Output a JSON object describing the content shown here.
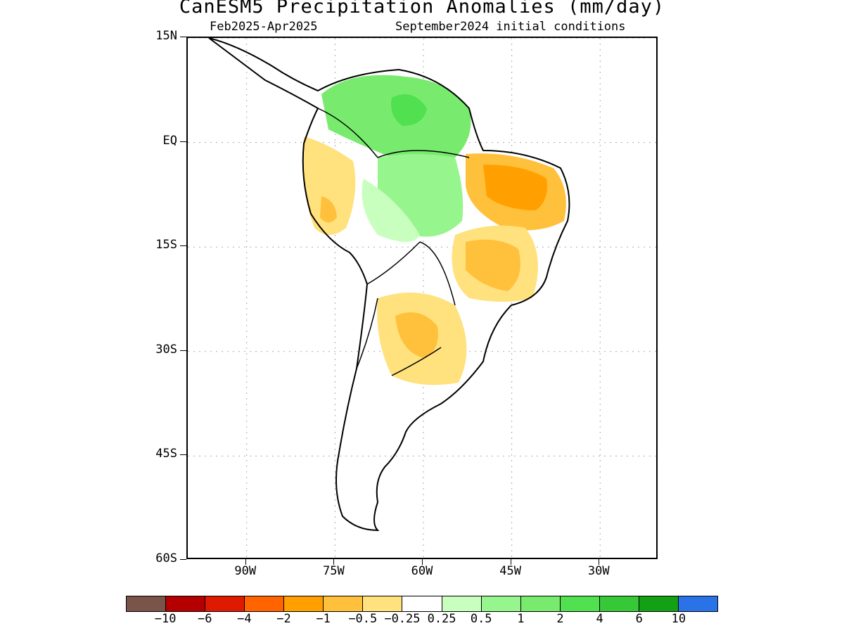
{
  "title": "CanESM5 Precipitation Anomalies (mm/day)",
  "period": "Feb2025-Apr2025",
  "initial_conditions": "September2024 initial conditions",
  "map": {
    "region": "South America",
    "lon_range": [
      -100,
      -20
    ],
    "lat_range": [
      -60,
      15
    ],
    "y_ticks": [
      {
        "label": "15N",
        "lat": 15
      },
      {
        "label": "EQ",
        "lat": 0
      },
      {
        "label": "15S",
        "lat": -15
      },
      {
        "label": "30S",
        "lat": -30
      },
      {
        "label": "45S",
        "lat": -45
      },
      {
        "label": "60S",
        "lat": -60
      }
    ],
    "x_ticks": [
      {
        "label": "90W",
        "lon": -90
      },
      {
        "label": "75W",
        "lon": -75
      },
      {
        "label": "60W",
        "lon": -60
      },
      {
        "label": "45W",
        "lon": -45
      },
      {
        "label": "30W",
        "lon": -30
      }
    ],
    "grid": true,
    "anomaly_features": [
      {
        "area": "northern South America / Venezuela-Guianas",
        "sign": "wet",
        "magnitude": "1 to 4"
      },
      {
        "area": "central-western Amazon",
        "sign": "wet",
        "magnitude": "0.25 to 2"
      },
      {
        "area": "northeast Brazil",
        "sign": "dry",
        "magnitude": "-1 to -4"
      },
      {
        "area": "central-east Brazil",
        "sign": "dry",
        "magnitude": "-0.25 to -2"
      },
      {
        "area": "Paraguay / northern Argentina",
        "sign": "dry",
        "magnitude": "-0.25 to -2"
      },
      {
        "area": "Peru / Ecuador Andes",
        "sign": "dry",
        "magnitude": "-0.25 to -1"
      }
    ]
  },
  "colorbar": {
    "colors": [
      "#7a5448",
      "#b40000",
      "#e01a00",
      "#ff6400",
      "#ffa000",
      "#ffc03c",
      "#ffe17d",
      "#ffffff",
      "#c8ffbe",
      "#96f58c",
      "#78eb6e",
      "#50e050",
      "#37c837",
      "#14a014",
      "#2a72e8"
    ],
    "labels": [
      "-10",
      "-6",
      "-4",
      "-2",
      "-1",
      "-0.5",
      "-0.25",
      "0.25",
      "0.5",
      "1",
      "2",
      "4",
      "6",
      "10"
    ],
    "label_texts": [
      "−10",
      "−6",
      "−4",
      "−2",
      "−1",
      "−0.5",
      "−0.25",
      "0.25",
      "0.5",
      "1",
      "2",
      "4",
      "6",
      "10"
    ]
  }
}
